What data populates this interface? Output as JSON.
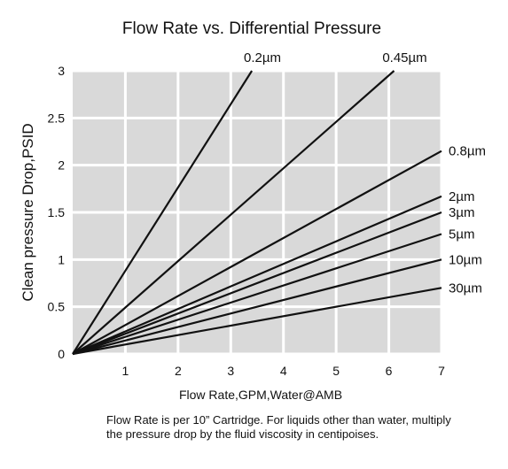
{
  "chart_data": {
    "type": "line",
    "title": "Flow Rate vs. Differential Pressure",
    "xlabel": "Flow Rate,GPM,Water@AMB",
    "ylabel": "Clean pressure Drop,PSID",
    "xlim": [
      0,
      7
    ],
    "ylim": [
      0,
      3
    ],
    "x_ticks": [
      "1",
      "2",
      "3",
      "4",
      "5",
      "6",
      "7"
    ],
    "y_ticks": [
      "0",
      "0.5",
      "1",
      "1.5",
      "2",
      "2.5",
      "3"
    ],
    "grid": true,
    "background": "#d9d9d9",
    "grid_color": "#ffffff",
    "line_color": "#111111",
    "series": [
      {
        "name": "0.2µm",
        "x": [
          0,
          3.4
        ],
        "y": [
          0,
          3.0
        ]
      },
      {
        "name": "0.45µm",
        "x": [
          0,
          6.1
        ],
        "y": [
          0,
          3.0
        ]
      },
      {
        "name": "0.8µm",
        "x": [
          0,
          7
        ],
        "y": [
          0,
          2.15
        ]
      },
      {
        "name": "2µm",
        "x": [
          0,
          7
        ],
        "y": [
          0,
          1.67
        ]
      },
      {
        "name": "3µm",
        "x": [
          0,
          7
        ],
        "y": [
          0,
          1.5
        ]
      },
      {
        "name": "5µm",
        "x": [
          0,
          7
        ],
        "y": [
          0,
          1.27
        ]
      },
      {
        "name": "10µm",
        "x": [
          0,
          7
        ],
        "y": [
          0,
          1.0
        ]
      },
      {
        "name": "30µm",
        "x": [
          0,
          7
        ],
        "y": [
          0,
          0.7
        ]
      }
    ]
  },
  "note": "Flow Rate is per 10” Cartridge. For liquids other than water, multiply the pressure drop by the fluid viscosity in centipoises."
}
